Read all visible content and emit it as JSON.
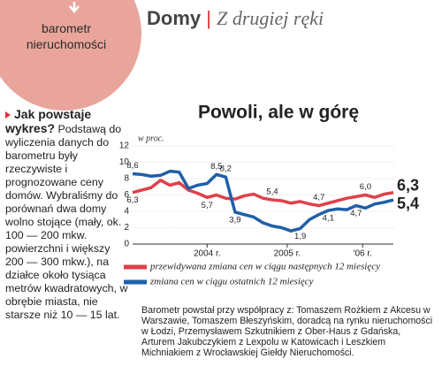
{
  "header": {
    "badge_line1": "barometr",
    "badge_line2": "nieruchomości",
    "section": "Domy",
    "separator": "|",
    "subsection": "Z drugiej ręki"
  },
  "sidebar": {
    "lead": "Jak powstaje wykres?",
    "body": "Podstawą do wyliczenia danych do barometru były rzeczywiste i prognozowane ceny domów. Wybraliśmy do porównań dwa domy wolno stojące (mały, ok. 100 — 200 mkw. powierzchni i większy 200 — 300 mkw.), na działce około tysiąca metrów kwadratowych, w obrębie miasta, nie starsze niż 10 — 15 lat."
  },
  "chart_data": {
    "type": "line",
    "title": "Powoli, ale w górę",
    "y_label": "w proc.",
    "x": [
      0,
      1,
      2,
      3,
      4,
      5,
      6,
      7,
      8,
      9,
      10,
      11,
      12,
      13,
      14,
      15,
      16,
      17,
      18,
      19,
      20,
      21,
      22,
      23,
      24,
      25,
      26,
      27,
      28
    ],
    "xlim": [
      0,
      28
    ],
    "xticks": [
      {
        "value": 8,
        "label": "2004 r."
      },
      {
        "value": 16.6,
        "label": "2005 r."
      },
      {
        "value": 24.7,
        "label": "'06 r."
      }
    ],
    "ylim": [
      0,
      12
    ],
    "yticks": [
      0,
      2,
      4,
      6,
      8,
      10,
      12
    ],
    "grid": true,
    "series": [
      {
        "name": "przewidywana zmiana cen w ciągu następnych 12 miesięcy",
        "color": "#e0404a",
        "values": [
          6.3,
          6.6,
          6.9,
          7.8,
          7.2,
          7.5,
          6.6,
          6.2,
          5.7,
          6.0,
          5.6,
          5.5,
          5.9,
          6.1,
          5.6,
          5.4,
          5.3,
          5.0,
          5.2,
          4.9,
          4.7,
          5.0,
          5.3,
          5.6,
          5.8,
          6.0,
          5.7,
          6.1,
          6.3
        ],
        "value_labels": [
          "6,3",
          null,
          null,
          null,
          null,
          null,
          null,
          null,
          "5,7",
          null,
          null,
          null,
          null,
          null,
          null,
          "5,4",
          null,
          null,
          null,
          null,
          "4,7",
          null,
          null,
          null,
          null,
          "6,0",
          null,
          null,
          "6,3"
        ]
      },
      {
        "name": "zmiana cen w ciągu ostatnich 12 miesięcy",
        "color": "#1f5fa8",
        "values": [
          8.6,
          8.5,
          8.3,
          8.4,
          8.9,
          8.8,
          6.8,
          7.2,
          7.4,
          8.5,
          8.2,
          3.9,
          3.6,
          3.3,
          2.6,
          2.2,
          2.0,
          1.6,
          1.9,
          3.0,
          3.6,
          4.1,
          4.3,
          4.2,
          4.7,
          4.4,
          4.9,
          5.1,
          5.4
        ],
        "value_labels": [
          "8,6",
          null,
          null,
          null,
          null,
          null,
          null,
          null,
          null,
          "8,5",
          "8,2",
          "3,9",
          null,
          null,
          null,
          null,
          null,
          null,
          "1,9",
          null,
          null,
          "4,1",
          null,
          null,
          "4,7",
          null,
          null,
          null,
          "5,4"
        ]
      }
    ]
  },
  "footnote": "Barometr powstał przy współpracy z: Tomaszem Rożkiem z Akcesu w Warszawie, Tomaszem Błeszyńskim, doradcą na rynku nieruchomości w Łodzi, Przemysławem Szkutnikiem z Ober-Haus z Gdańska, Arturem Jakubczykiem z Lexpolu w Katowicach i Leszkiem Michniakiem z Wrocławskiej Giełdy Nieruchomości."
}
